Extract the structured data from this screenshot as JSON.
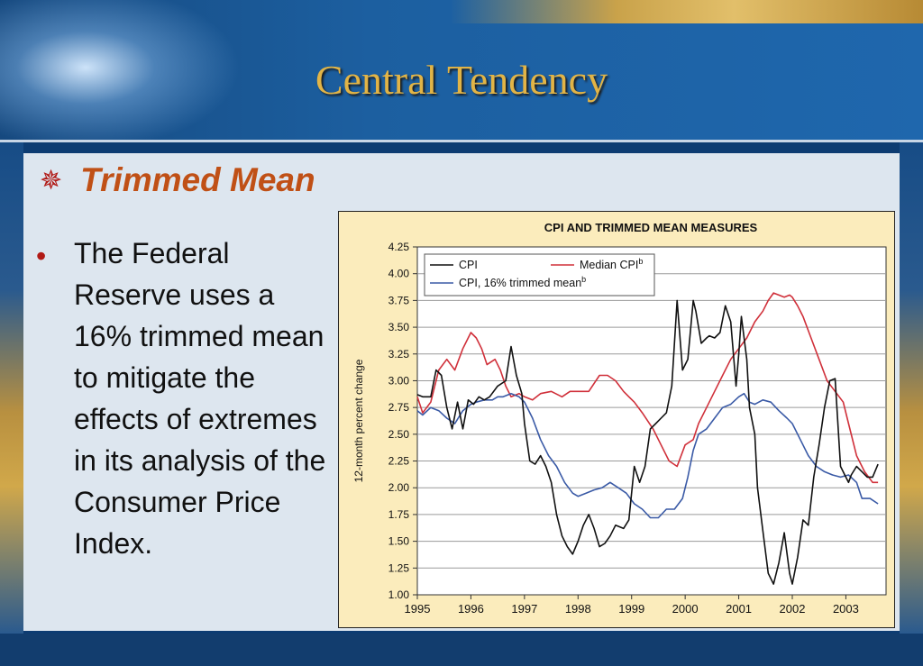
{
  "slide": {
    "title": "Central Tendency",
    "subtitle": "Trimmed Mean",
    "bullet_text": "The Federal Reserve uses a 16% trimmed mean to mitigate the effects of extremes in its analysis of the Consumer Price Index.",
    "icons": [
      "star-bullet-icon",
      "bullet-dot-icon"
    ],
    "colors": {
      "title": "#e1b447",
      "subtitle": "#c05016",
      "bullet": "#b11a16"
    }
  },
  "chart_data": {
    "type": "line",
    "title": "CPI AND TRIMMED MEAN MEASURES",
    "xlabel": "",
    "ylabel": "12-month percent change",
    "xlim": [
      1995.0,
      2003.75
    ],
    "ylim": [
      1.0,
      4.25
    ],
    "x_ticks": [
      "1995",
      "1996",
      "1997",
      "1998",
      "1999",
      "2000",
      "2001",
      "2002",
      "2003"
    ],
    "y_ticks": [
      "1.00",
      "1.25",
      "1.50",
      "1.75",
      "2.00",
      "2.25",
      "2.50",
      "2.75",
      "3.00",
      "3.25",
      "3.50",
      "3.75",
      "4.00",
      "4.25"
    ],
    "grid": true,
    "legend_position": "top-left",
    "series": [
      {
        "name": "CPI",
        "legend_label": "CPI",
        "superscript": "",
        "color": "#111111",
        "x": [
          1995.0,
          1995.1,
          1995.25,
          1995.35,
          1995.45,
          1995.55,
          1995.65,
          1995.75,
          1995.85,
          1995.95,
          1996.05,
          1996.15,
          1996.25,
          1996.35,
          1996.5,
          1996.65,
          1996.75,
          1996.85,
          1996.95,
          1997.0,
          1997.1,
          1997.2,
          1997.3,
          1997.4,
          1997.5,
          1997.6,
          1997.7,
          1997.8,
          1997.9,
          1998.0,
          1998.1,
          1998.2,
          1998.3,
          1998.4,
          1998.5,
          1998.6,
          1998.7,
          1998.85,
          1998.95,
          1999.05,
          1999.15,
          1999.25,
          1999.35,
          1999.45,
          1999.55,
          1999.65,
          1999.75,
          1999.85,
          1999.95,
          2000.05,
          2000.15,
          2000.2,
          2000.3,
          2000.4,
          2000.45,
          2000.55,
          2000.65,
          2000.75,
          2000.85,
          2000.95,
          2001.0,
          2001.05,
          2001.15,
          2001.2,
          2001.3,
          2001.35,
          2001.45,
          2001.55,
          2001.65,
          2001.75,
          2001.85,
          2001.95,
          2002.0,
          2002.1,
          2002.2,
          2002.3,
          2002.4,
          2002.5,
          2002.6,
          2002.7,
          2002.8,
          2002.9,
          2003.0,
          2003.05,
          2003.1,
          2003.2,
          2003.3,
          2003.4,
          2003.5,
          2003.6
        ],
        "y": [
          2.87,
          2.85,
          2.85,
          3.1,
          3.05,
          2.75,
          2.55,
          2.8,
          2.55,
          2.82,
          2.78,
          2.85,
          2.82,
          2.85,
          2.95,
          3.0,
          3.32,
          3.05,
          2.88,
          2.6,
          2.25,
          2.22,
          2.3,
          2.2,
          2.05,
          1.75,
          1.55,
          1.45,
          1.38,
          1.5,
          1.65,
          1.75,
          1.62,
          1.45,
          1.48,
          1.55,
          1.65,
          1.62,
          1.7,
          2.2,
          2.05,
          2.2,
          2.55,
          2.6,
          2.65,
          2.7,
          2.95,
          3.75,
          3.1,
          3.2,
          3.75,
          3.65,
          3.35,
          3.4,
          3.42,
          3.4,
          3.45,
          3.7,
          3.55,
          2.95,
          3.25,
          3.6,
          3.2,
          2.75,
          2.5,
          2.0,
          1.6,
          1.2,
          1.1,
          1.3,
          1.58,
          1.2,
          1.1,
          1.35,
          1.7,
          1.65,
          2.1,
          2.4,
          2.75,
          3.0,
          3.02,
          2.2,
          2.1,
          2.05,
          2.12,
          2.2,
          2.15,
          2.1,
          2.1,
          2.22
        ]
      },
      {
        "name": "Median CPI",
        "legend_label": "Median CPI",
        "superscript": "b",
        "color": "#d0303a",
        "x": [
          1995.0,
          1995.1,
          1995.25,
          1995.4,
          1995.55,
          1995.7,
          1995.85,
          1996.0,
          1996.1,
          1996.2,
          1996.3,
          1996.45,
          1996.55,
          1996.65,
          1996.75,
          1996.9,
          1997.0,
          1997.15,
          1997.3,
          1997.5,
          1997.7,
          1997.85,
          1998.0,
          1998.2,
          1998.4,
          1998.55,
          1998.7,
          1998.85,
          1998.95,
          1999.05,
          1999.2,
          1999.4,
          1999.55,
          1999.7,
          1999.85,
          2000.0,
          2000.15,
          2000.25,
          2000.4,
          2000.55,
          2000.7,
          2000.85,
          2001.0,
          2001.15,
          2001.3,
          2001.45,
          2001.55,
          2001.65,
          2001.75,
          2001.85,
          2001.95,
          2002.0,
          2002.1,
          2002.2,
          2002.35,
          2002.5,
          2002.65,
          2002.8,
          2002.95,
          2003.05,
          2003.2,
          2003.35,
          2003.5,
          2003.6
        ],
        "y": [
          2.85,
          2.7,
          2.8,
          3.1,
          3.2,
          3.1,
          3.3,
          3.45,
          3.4,
          3.3,
          3.15,
          3.2,
          3.1,
          2.95,
          2.85,
          2.88,
          2.85,
          2.82,
          2.88,
          2.9,
          2.85,
          2.9,
          2.9,
          2.9,
          3.05,
          3.05,
          3.0,
          2.9,
          2.85,
          2.8,
          2.7,
          2.55,
          2.4,
          2.25,
          2.2,
          2.4,
          2.45,
          2.6,
          2.75,
          2.9,
          3.05,
          3.2,
          3.3,
          3.4,
          3.55,
          3.65,
          3.75,
          3.82,
          3.8,
          3.78,
          3.8,
          3.78,
          3.7,
          3.6,
          3.4,
          3.2,
          3.0,
          2.9,
          2.8,
          2.6,
          2.3,
          2.15,
          2.05,
          2.05
        ]
      },
      {
        "name": "CPI, 16% trimmed mean",
        "legend_label": "CPI, 16% trimmed mean",
        "superscript": "b",
        "color": "#3a5aa6",
        "x": [
          1995.0,
          1995.1,
          1995.25,
          1995.4,
          1995.55,
          1995.7,
          1995.85,
          1996.0,
          1996.1,
          1996.25,
          1996.4,
          1996.5,
          1996.6,
          1996.75,
          1996.9,
          1997.0,
          1997.15,
          1997.3,
          1997.45,
          1997.6,
          1997.75,
          1997.9,
          1998.0,
          1998.15,
          1998.3,
          1998.45,
          1998.6,
          1998.75,
          1998.9,
          1999.05,
          1999.2,
          1999.35,
          1999.5,
          1999.65,
          1999.8,
          1999.95,
          2000.05,
          2000.15,
          2000.25,
          2000.4,
          2000.55,
          2000.7,
          2000.85,
          2001.0,
          2001.1,
          2001.2,
          2001.3,
          2001.45,
          2001.6,
          2001.75,
          2001.9,
          2002.0,
          2002.15,
          2002.3,
          2002.45,
          2002.6,
          2002.75,
          2002.9,
          2003.05,
          2003.2,
          2003.3,
          2003.45,
          2003.6
        ],
        "y": [
          2.72,
          2.68,
          2.75,
          2.72,
          2.65,
          2.6,
          2.72,
          2.78,
          2.8,
          2.82,
          2.82,
          2.85,
          2.85,
          2.88,
          2.85,
          2.8,
          2.65,
          2.45,
          2.3,
          2.2,
          2.05,
          1.95,
          1.92,
          1.95,
          1.98,
          2.0,
          2.05,
          2.0,
          1.95,
          1.85,
          1.8,
          1.72,
          1.72,
          1.8,
          1.8,
          1.9,
          2.1,
          2.35,
          2.5,
          2.55,
          2.65,
          2.75,
          2.78,
          2.85,
          2.88,
          2.8,
          2.78,
          2.82,
          2.8,
          2.72,
          2.65,
          2.6,
          2.45,
          2.3,
          2.2,
          2.15,
          2.12,
          2.1,
          2.12,
          2.05,
          1.9,
          1.9,
          1.85
        ]
      }
    ]
  }
}
